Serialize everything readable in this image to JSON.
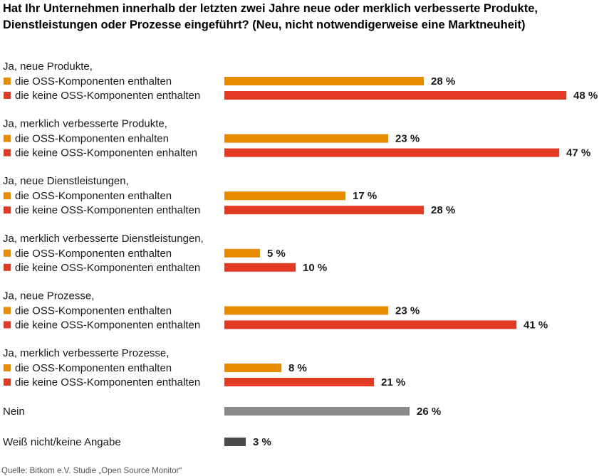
{
  "chart_data": {
    "type": "bar",
    "orientation": "horizontal",
    "title_lines": [
      "Hat Ihr Unternehmen innerhalb der letzten zwei Jahre neue oder merklich verbesserte Produkte,",
      "Dienstleistungen oder Prozesse eingeführt? (Neu, nicht notwendigerweise eine Marktneuheit)"
    ],
    "unit": "%",
    "xlim": [
      0,
      48
    ],
    "groups": [
      {
        "label": "Ja, neue Produkte,",
        "bars": [
          {
            "label": "die OSS-Komponenten enthalten",
            "value": 28,
            "value_label": "28 %",
            "kind": "oss"
          },
          {
            "label": "die keine OSS-Komponenten enthalten",
            "value": 48,
            "value_label": "48 %",
            "kind": "nonoss"
          }
        ]
      },
      {
        "label": "Ja, merklich verbesserte Produkte,",
        "bars": [
          {
            "label": "die OSS-Komponenten enhalten",
            "value": 23,
            "value_label": "23 %",
            "kind": "oss"
          },
          {
            "label": "die keine OSS-Komponenten enhalten",
            "value": 47,
            "value_label": "47 %",
            "kind": "nonoss"
          }
        ]
      },
      {
        "label": "Ja, neue Dienstleistungen,",
        "bars": [
          {
            "label": "die OSS-Komponenten enthalten",
            "value": 17,
            "value_label": "17 %",
            "kind": "oss"
          },
          {
            "label": "die keine OSS-Komponenten enthalten",
            "value": 28,
            "value_label": "28 %",
            "kind": "nonoss"
          }
        ]
      },
      {
        "label": "Ja, merklich verbesserte Dienstleistungen,",
        "bars": [
          {
            "label": "die OSS-Komponenten enthalten",
            "value": 5,
            "value_label": "5 %",
            "kind": "oss"
          },
          {
            "label": "die keine OSS-Komponenten enthalten",
            "value": 10,
            "value_label": "10 %",
            "kind": "nonoss"
          }
        ]
      },
      {
        "label": "Ja, neue Prozesse,",
        "bars": [
          {
            "label": "die OSS-Komponenten enthalten",
            "value": 23,
            "value_label": "23 %",
            "kind": "oss"
          },
          {
            "label": "die keine OSS-Komponenten enthalten",
            "value": 41,
            "value_label": "41 %",
            "kind": "nonoss"
          }
        ]
      },
      {
        "label": "Ja, merklich verbesserte Prozesse,",
        "bars": [
          {
            "label": "die OSS-Komponenten enthalten",
            "value": 8,
            "value_label": "8 %",
            "kind": "oss"
          },
          {
            "label": "die keine OSS-Komponenten enthalten",
            "value": 21,
            "value_label": "21 %",
            "kind": "nonoss"
          }
        ]
      }
    ],
    "singles": [
      {
        "label": "Nein",
        "value": 26,
        "value_label": "26 %",
        "kind": "nein"
      },
      {
        "label": "Weiß nicht/keine Angabe",
        "value": 3,
        "value_label": "3 %",
        "kind": "weiss"
      }
    ],
    "source": "Quelle: Bitkom e.V. Studie „Open Source Monitor“",
    "colors": {
      "oss": "#E88C00",
      "nonoss": "#E23A23",
      "nein": "#8A8A8A",
      "weiss": "#4A4A4A"
    }
  }
}
